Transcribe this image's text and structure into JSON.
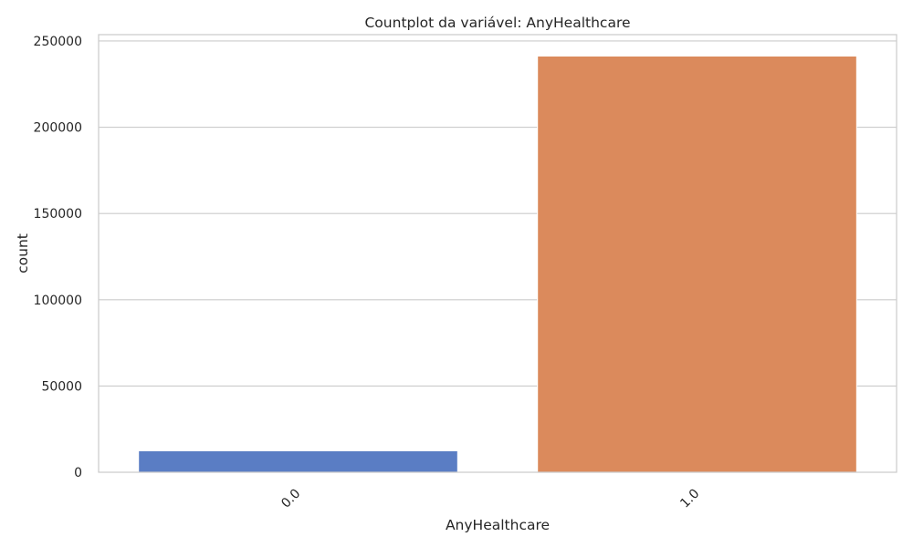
{
  "chart_data": {
    "type": "bar",
    "title": "Countplot da variável: AnyHealthcare",
    "xlabel": "AnyHealthcare",
    "ylabel": "count",
    "categories": [
      "0.0",
      "1.0"
    ],
    "values": [
      12417,
      241263
    ],
    "colors": [
      "#5a7dc4",
      "#db8a5c"
    ],
    "ylim": [
      0,
      253680
    ],
    "yticks": [
      0,
      50000,
      100000,
      150000,
      200000,
      250000
    ],
    "grid": true,
    "x_tick_rotation": 45
  }
}
